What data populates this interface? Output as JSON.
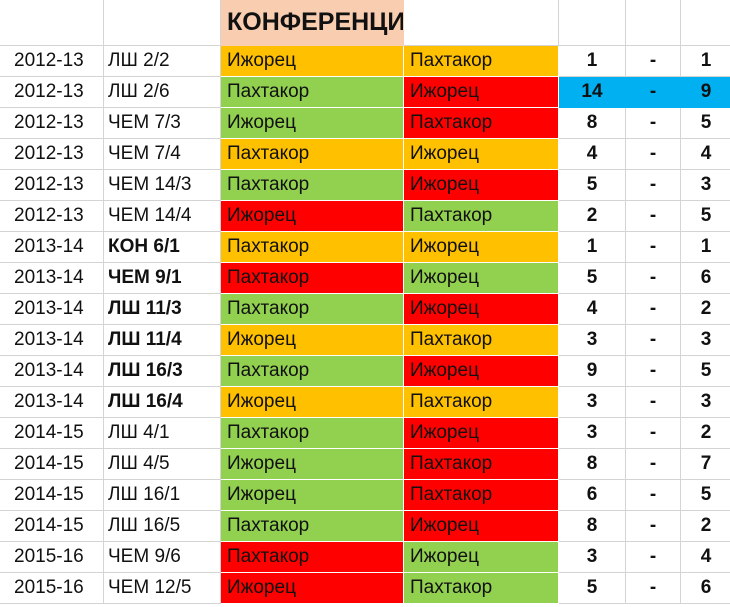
{
  "header": {
    "title": "КОНФЕРЕНЦИЯ"
  },
  "colors": {
    "win": "#92d050",
    "loss": "#ff0000",
    "draw": "#ffc000",
    "highlight": "#00b0f0",
    "header": "#f9cdb0"
  },
  "rows": [
    {
      "season": "2012-13",
      "round": "ЛШ 2/2",
      "bold": false,
      "team1": "Ижорец",
      "team2": "Пахтакор",
      "c1": "orange",
      "c2": "orange",
      "s1": "1",
      "dash": "-",
      "s2": "1",
      "highlight": false
    },
    {
      "season": "2012-13",
      "round": "ЛШ 2/6",
      "bold": false,
      "team1": "Пахтакор",
      "team2": "Ижорец",
      "c1": "green",
      "c2": "red",
      "s1": "14",
      "dash": "-",
      "s2": "9",
      "highlight": true
    },
    {
      "season": "2012-13",
      "round": "ЧЕМ 7/3",
      "bold": false,
      "team1": "Ижорец",
      "team2": "Пахтакор",
      "c1": "green",
      "c2": "red",
      "s1": "8",
      "dash": "-",
      "s2": "5",
      "highlight": false
    },
    {
      "season": "2012-13",
      "round": "ЧЕМ 7/4",
      "bold": false,
      "team1": "Пахтакор",
      "team2": "Ижорец",
      "c1": "orange",
      "c2": "orange",
      "s1": "4",
      "dash": "-",
      "s2": "4",
      "highlight": false
    },
    {
      "season": "2012-13",
      "round": "ЧЕМ 14/3",
      "bold": false,
      "team1": "Пахтакор",
      "team2": "Ижорец",
      "c1": "green",
      "c2": "red",
      "s1": "5",
      "dash": "-",
      "s2": "3",
      "highlight": false
    },
    {
      "season": "2012-13",
      "round": "ЧЕМ 14/4",
      "bold": false,
      "team1": "Ижорец",
      "team2": "Пахтакор",
      "c1": "red",
      "c2": "green",
      "s1": "2",
      "dash": "-",
      "s2": "5",
      "highlight": false
    },
    {
      "season": "2013-14",
      "round": "КОН 6/1",
      "bold": true,
      "team1": "Пахтакор",
      "team2": "Ижорец",
      "c1": "orange",
      "c2": "orange",
      "s1": "1",
      "dash": "-",
      "s2": "1",
      "highlight": false
    },
    {
      "season": "2013-14",
      "round": "ЧЕМ 9/1",
      "bold": true,
      "team1": "Пахтакор",
      "team2": "Ижорец",
      "c1": "red",
      "c2": "green",
      "s1": "5",
      "dash": "-",
      "s2": "6",
      "highlight": false
    },
    {
      "season": "2013-14",
      "round": "ЛШ 11/3",
      "bold": true,
      "team1": "Пахтакор",
      "team2": "Ижорец",
      "c1": "green",
      "c2": "red",
      "s1": "4",
      "dash": "-",
      "s2": "2",
      "highlight": false
    },
    {
      "season": "2013-14",
      "round": "ЛШ 11/4",
      "bold": true,
      "team1": "Ижорец",
      "team2": "Пахтакор",
      "c1": "orange",
      "c2": "orange",
      "s1": "3",
      "dash": "-",
      "s2": "3",
      "highlight": false
    },
    {
      "season": "2013-14",
      "round": "ЛШ 16/3",
      "bold": true,
      "team1": "Пахтакор",
      "team2": "Ижорец",
      "c1": "green",
      "c2": "red",
      "s1": "9",
      "dash": "-",
      "s2": "5",
      "highlight": false
    },
    {
      "season": "2013-14",
      "round": "ЛШ 16/4",
      "bold": true,
      "team1": "Ижорец",
      "team2": "Пахтакор",
      "c1": "orange",
      "c2": "orange",
      "s1": "3",
      "dash": "-",
      "s2": "3",
      "highlight": false
    },
    {
      "season": "2014-15",
      "round": "ЛШ 4/1",
      "bold": false,
      "team1": "Пахтакор",
      "team2": "Ижорец",
      "c1": "green",
      "c2": "red",
      "s1": "3",
      "dash": "-",
      "s2": "2",
      "highlight": false
    },
    {
      "season": "2014-15",
      "round": "ЛШ 4/5",
      "bold": false,
      "team1": "Ижорец",
      "team2": "Пахтакор",
      "c1": "green",
      "c2": "red",
      "s1": "8",
      "dash": "-",
      "s2": "7",
      "highlight": false
    },
    {
      "season": "2014-15",
      "round": "ЛШ 16/1",
      "bold": false,
      "team1": "Ижорец",
      "team2": "Пахтакор",
      "c1": "green",
      "c2": "red",
      "s1": "6",
      "dash": "-",
      "s2": "5",
      "highlight": false
    },
    {
      "season": "2014-15",
      "round": "ЛШ 16/5",
      "bold": false,
      "team1": "Пахтакор",
      "team2": "Ижорец",
      "c1": "green",
      "c2": "red",
      "s1": "8",
      "dash": "-",
      "s2": "2",
      "highlight": false
    },
    {
      "season": "2015-16",
      "round": "ЧЕМ 9/6",
      "bold": false,
      "team1": "Пахтакор",
      "team2": "Ижорец",
      "c1": "red",
      "c2": "green",
      "s1": "3",
      "dash": "-",
      "s2": "4",
      "highlight": false
    },
    {
      "season": "2015-16",
      "round": "ЧЕМ 12/5",
      "bold": false,
      "team1": "Ижорец",
      "team2": "Пахтакор",
      "c1": "red",
      "c2": "green",
      "s1": "5",
      "dash": "-",
      "s2": "6",
      "highlight": false
    }
  ]
}
